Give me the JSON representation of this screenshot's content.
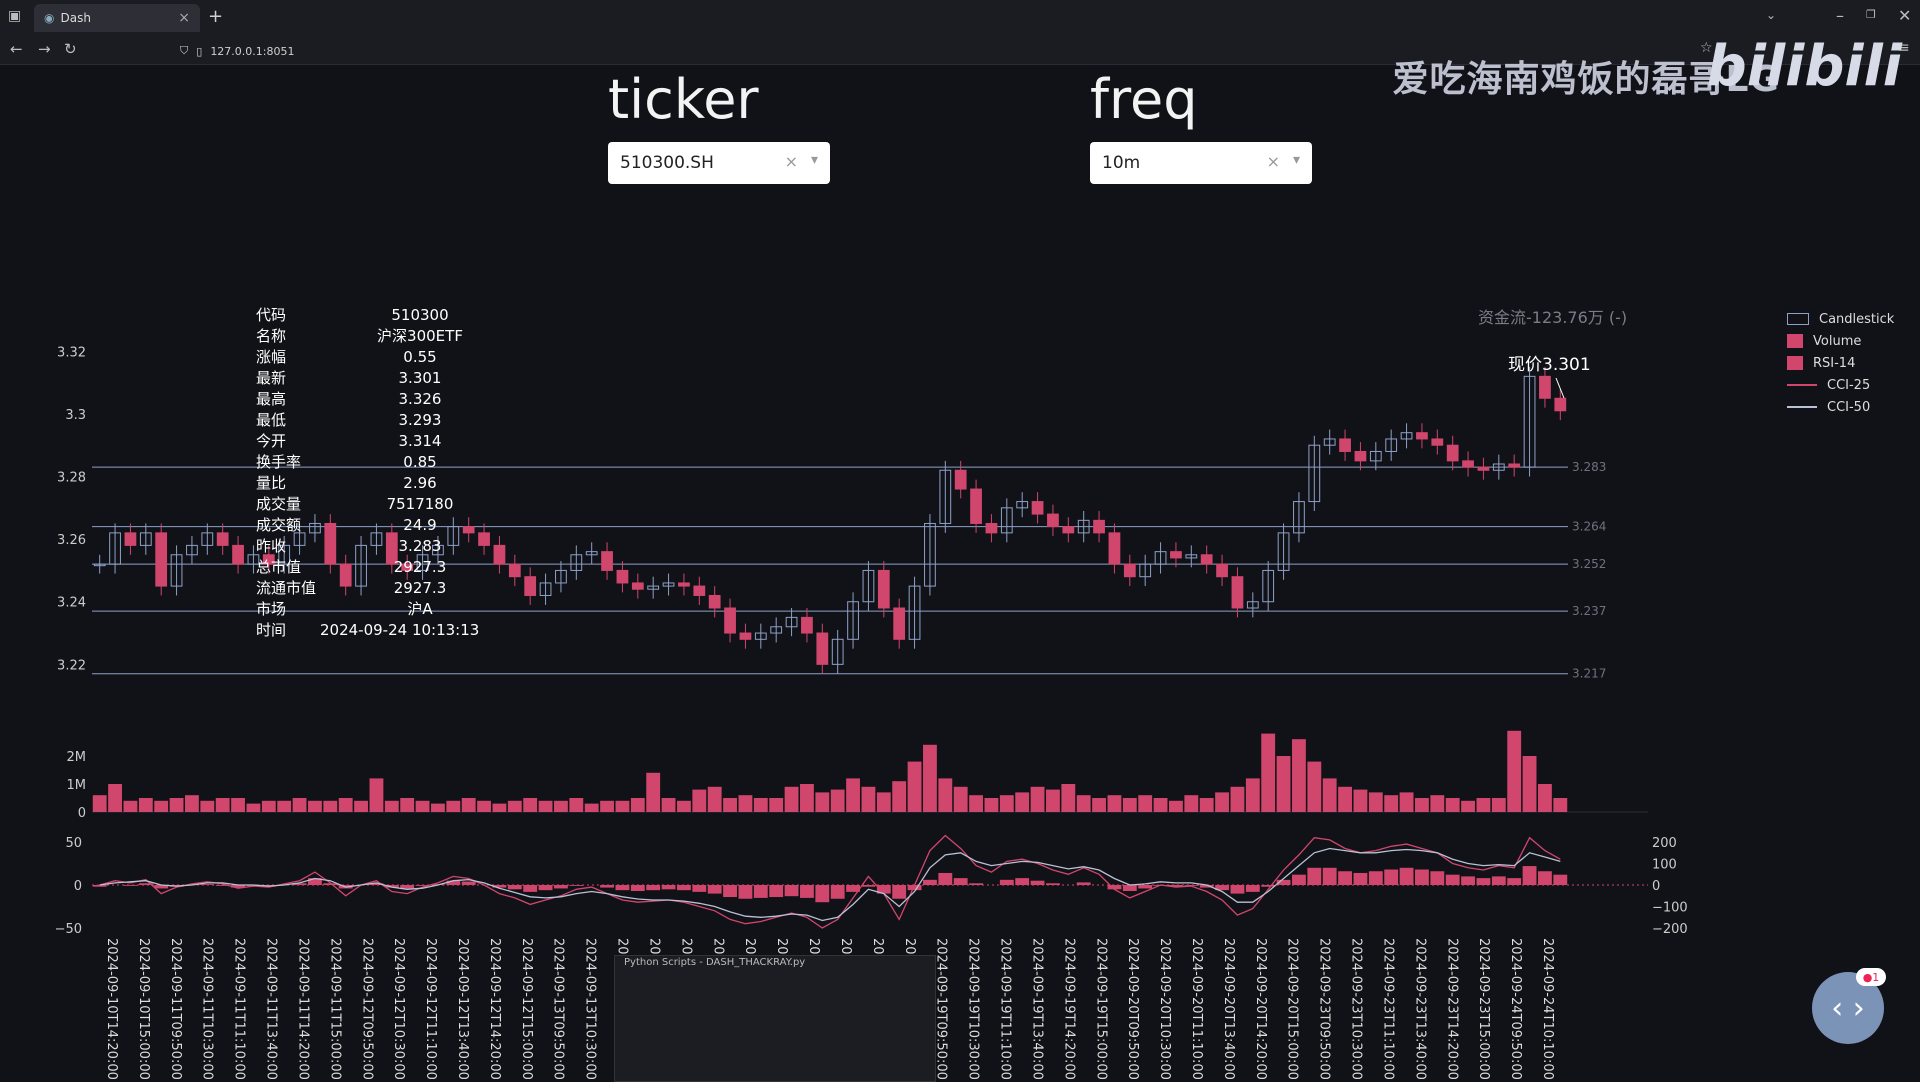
{
  "browser": {
    "tab_title": "Dash",
    "tab_close": "×",
    "new_tab": "+",
    "address": "127.0.0.1:8051"
  },
  "watermark": {
    "text": "爱吃海南鸡饭的磊哥LG",
    "logo": "bilibili"
  },
  "controls": {
    "ticker_label": "ticker",
    "ticker_value": "510300.SH",
    "freq_label": "freq",
    "freq_value": "10m"
  },
  "info_panel": [
    {
      "k": "代码",
      "v": "510300"
    },
    {
      "k": "名称",
      "v": "沪深300ETF"
    },
    {
      "k": "涨幅",
      "v": "0.55"
    },
    {
      "k": "最新",
      "v": "3.301"
    },
    {
      "k": "最高",
      "v": "3.326"
    },
    {
      "k": "最低",
      "v": "3.293"
    },
    {
      "k": "今开",
      "v": "3.314"
    },
    {
      "k": "换手率",
      "v": "0.85"
    },
    {
      "k": "量比",
      "v": "2.96"
    },
    {
      "k": "成交量",
      "v": "7517180"
    },
    {
      "k": "成交额",
      "v": "24.9"
    },
    {
      "k": "昨收",
      "v": "3.283"
    },
    {
      "k": "总市值",
      "v": "2927.3"
    },
    {
      "k": "流通市值",
      "v": "2927.3"
    },
    {
      "k": "市场",
      "v": "沪A"
    },
    {
      "k": "时间",
      "v": "2024-09-24 10:13:13"
    }
  ],
  "annotations": {
    "flow": "资金流-123.76万 (-)",
    "current_price": "现价3.301"
  },
  "legend": [
    "Candlestick",
    "Volume",
    "RSI-14",
    "CCI-25",
    "CCI-50"
  ],
  "colors": {
    "accent": "#d1466d",
    "line": "#b8c1d6",
    "hline": "#8ea0c8",
    "bg": "#111217"
  },
  "mini_window_title": "Python Scripts - DASH_THACKRAY.py",
  "chart_data": {
    "type": "line",
    "price_axis": {
      "ticks": [
        "3.32",
        "3.3",
        "3.28",
        "3.26",
        "3.24",
        "3.22"
      ],
      "range": [
        3.215,
        3.33
      ]
    },
    "levels": [
      3.283,
      3.264,
      3.252,
      3.237,
      3.217
    ],
    "level_labels": [
      "3.283",
      "3.264",
      "3.252",
      "3.237",
      "3.217"
    ],
    "volume_axis": {
      "ticks": [
        "2M",
        "1M",
        "0"
      ]
    },
    "osc_left_axis": {
      "ticks": [
        "50",
        "0",
        "−50"
      ]
    },
    "osc_right_axis": {
      "ticks": [
        "200",
        "100",
        "0",
        "−100",
        "−200"
      ]
    },
    "x_labels": [
      "2024-09-10T14:20:00",
      "2024-09-10T15:00:00",
      "2024-09-11T09:50:00",
      "2024-09-11T10:30:00",
      "2024-09-11T11:10:00",
      "2024-09-11T13:40:00",
      "2024-09-11T14:20:00",
      "2024-09-11T15:00:00",
      "2024-09-12T09:50:00",
      "2024-09-12T10:30:00",
      "2024-09-12T11:10:00",
      "2024-09-12T13:40:00",
      "2024-09-12T14:20:00",
      "2024-09-12T15:00:00",
      "2024-09-13T09:50:00",
      "2024-09-13T10:30:00",
      "2024-09-13T11:10:00",
      "2024-09-13T13:40:00",
      "2024-09-13T14:20:00",
      "2024-09-13T15:00:00",
      "2024-09-18T09:50:00",
      "2024-09-18T10:30:00",
      "2024-09-18T11:10:00",
      "2024-09-18T13:40:00",
      "2024-09-18T14:20:00",
      "2024-09-18T15:00:00",
      "2024-09-19T09:50:00",
      "2024-09-19T10:30:00",
      "2024-09-19T11:10:00",
      "2024-09-19T13:40:00",
      "2024-09-19T14:20:00",
      "2024-09-19T15:00:00",
      "2024-09-20T09:50:00",
      "2024-09-20T10:30:00",
      "2024-09-20T11:10:00",
      "2024-09-20T13:40:00",
      "2024-09-20T14:20:00",
      "2024-09-20T15:00:00",
      "2024-09-23T09:50:00",
      "2024-09-23T10:30:00",
      "2024-09-23T11:10:00",
      "2024-09-23T13:40:00",
      "2024-09-23T14:20:00",
      "2024-09-23T15:00:00",
      "2024-09-24T09:50:00",
      "2024-09-24T10:10:00"
    ],
    "close": [
      3.252,
      3.262,
      3.258,
      3.262,
      3.245,
      3.255,
      3.258,
      3.262,
      3.258,
      3.252,
      3.255,
      3.252,
      3.258,
      3.262,
      3.265,
      3.252,
      3.245,
      3.258,
      3.262,
      3.252,
      3.25,
      3.255,
      3.258,
      3.264,
      3.262,
      3.258,
      3.252,
      3.248,
      3.242,
      3.246,
      3.25,
      3.255,
      3.256,
      3.25,
      3.246,
      3.244,
      3.245,
      3.246,
      3.245,
      3.242,
      3.238,
      3.23,
      3.228,
      3.23,
      3.232,
      3.235,
      3.23,
      3.22,
      3.228,
      3.24,
      3.25,
      3.238,
      3.228,
      3.245,
      3.265,
      3.282,
      3.276,
      3.265,
      3.262,
      3.27,
      3.272,
      3.268,
      3.264,
      3.262,
      3.266,
      3.262,
      3.252,
      3.248,
      3.252,
      3.256,
      3.254,
      3.255,
      3.252,
      3.248,
      3.238,
      3.24,
      3.25,
      3.262,
      3.272,
      3.29,
      3.292,
      3.288,
      3.285,
      3.288,
      3.292,
      3.294,
      3.292,
      3.29,
      3.285,
      3.283,
      3.282,
      3.284,
      3.283,
      3.312,
      3.305,
      3.301
    ],
    "volume": [
      0.6,
      1.0,
      0.4,
      0.5,
      0.4,
      0.5,
      0.6,
      0.4,
      0.5,
      0.5,
      0.3,
      0.4,
      0.4,
      0.5,
      0.4,
      0.4,
      0.5,
      0.4,
      1.2,
      0.4,
      0.5,
      0.4,
      0.3,
      0.4,
      0.5,
      0.4,
      0.3,
      0.4,
      0.5,
      0.4,
      0.4,
      0.5,
      0.3,
      0.4,
      0.4,
      0.5,
      1.4,
      0.5,
      0.4,
      0.8,
      0.9,
      0.5,
      0.6,
      0.5,
      0.5,
      0.9,
      1.0,
      0.7,
      0.8,
      1.2,
      0.9,
      0.7,
      1.1,
      1.8,
      2.4,
      1.2,
      0.9,
      0.6,
      0.5,
      0.6,
      0.7,
      0.9,
      0.8,
      1.0,
      0.6,
      0.5,
      0.6,
      0.5,
      0.6,
      0.5,
      0.4,
      0.6,
      0.5,
      0.7,
      0.9,
      1.2,
      2.8,
      2.0,
      2.6,
      1.8,
      1.2,
      0.9,
      0.8,
      0.7,
      0.6,
      0.7,
      0.5,
      0.6,
      0.5,
      0.4,
      0.5,
      0.5,
      2.9,
      2.0,
      1.0,
      0.5
    ],
    "rsi": [
      48,
      50,
      49,
      52,
      46,
      48,
      50,
      51,
      49,
      47,
      49,
      48,
      50,
      52,
      58,
      52,
      46,
      50,
      52,
      47,
      46,
      49,
      51,
      55,
      54,
      50,
      47,
      45,
      42,
      44,
      46,
      49,
      50,
      47,
      44,
      43,
      44,
      45,
      44,
      42,
      40,
      36,
      34,
      35,
      36,
      37,
      35,
      30,
      34,
      42,
      48,
      40,
      34,
      44,
      56,
      64,
      58,
      52,
      50,
      56,
      58,
      55,
      52,
      50,
      53,
      50,
      45,
      43,
      46,
      49,
      48,
      49,
      47,
      44,
      40,
      42,
      48,
      56,
      62,
      70,
      70,
      66,
      64,
      66,
      68,
      70,
      68,
      66,
      62,
      60,
      58,
      60,
      58,
      72,
      66,
      62
    ],
    "cci25": [
      0,
      20,
      10,
      25,
      -40,
      -10,
      5,
      15,
      5,
      -15,
      -5,
      -10,
      5,
      20,
      60,
      10,
      -50,
      0,
      20,
      -30,
      -40,
      -10,
      10,
      40,
      30,
      0,
      -40,
      -60,
      -90,
      -70,
      -50,
      -20,
      -10,
      -40,
      -70,
      -80,
      -75,
      -70,
      -80,
      -100,
      -120,
      -160,
      -180,
      -170,
      -150,
      -130,
      -150,
      -200,
      -160,
      -60,
      40,
      -40,
      -160,
      0,
      160,
      230,
      170,
      90,
      60,
      110,
      120,
      100,
      70,
      50,
      80,
      50,
      -20,
      -60,
      -30,
      0,
      -10,
      -5,
      -30,
      -70,
      -140,
      -110,
      -20,
      70,
      140,
      220,
      210,
      170,
      150,
      160,
      180,
      190,
      170,
      150,
      100,
      80,
      70,
      90,
      80,
      220,
      160,
      120
    ],
    "cci50": [
      0,
      10,
      15,
      20,
      0,
      -5,
      0,
      10,
      10,
      0,
      0,
      -5,
      0,
      10,
      30,
      20,
      -10,
      0,
      10,
      -10,
      -20,
      -15,
      0,
      20,
      25,
      10,
      -15,
      -35,
      -55,
      -60,
      -55,
      -40,
      -30,
      -40,
      -55,
      -65,
      -70,
      -70,
      -75,
      -85,
      -100,
      -125,
      -145,
      -150,
      -145,
      -135,
      -140,
      -165,
      -150,
      -90,
      -20,
      -40,
      -100,
      -30,
      80,
      140,
      150,
      110,
      90,
      100,
      110,
      105,
      90,
      75,
      85,
      70,
      30,
      0,
      5,
      15,
      10,
      10,
      0,
      -30,
      -80,
      -80,
      -30,
      30,
      90,
      150,
      170,
      160,
      150,
      150,
      160,
      165,
      160,
      150,
      120,
      100,
      90,
      95,
      90,
      150,
      130,
      110
    ]
  }
}
